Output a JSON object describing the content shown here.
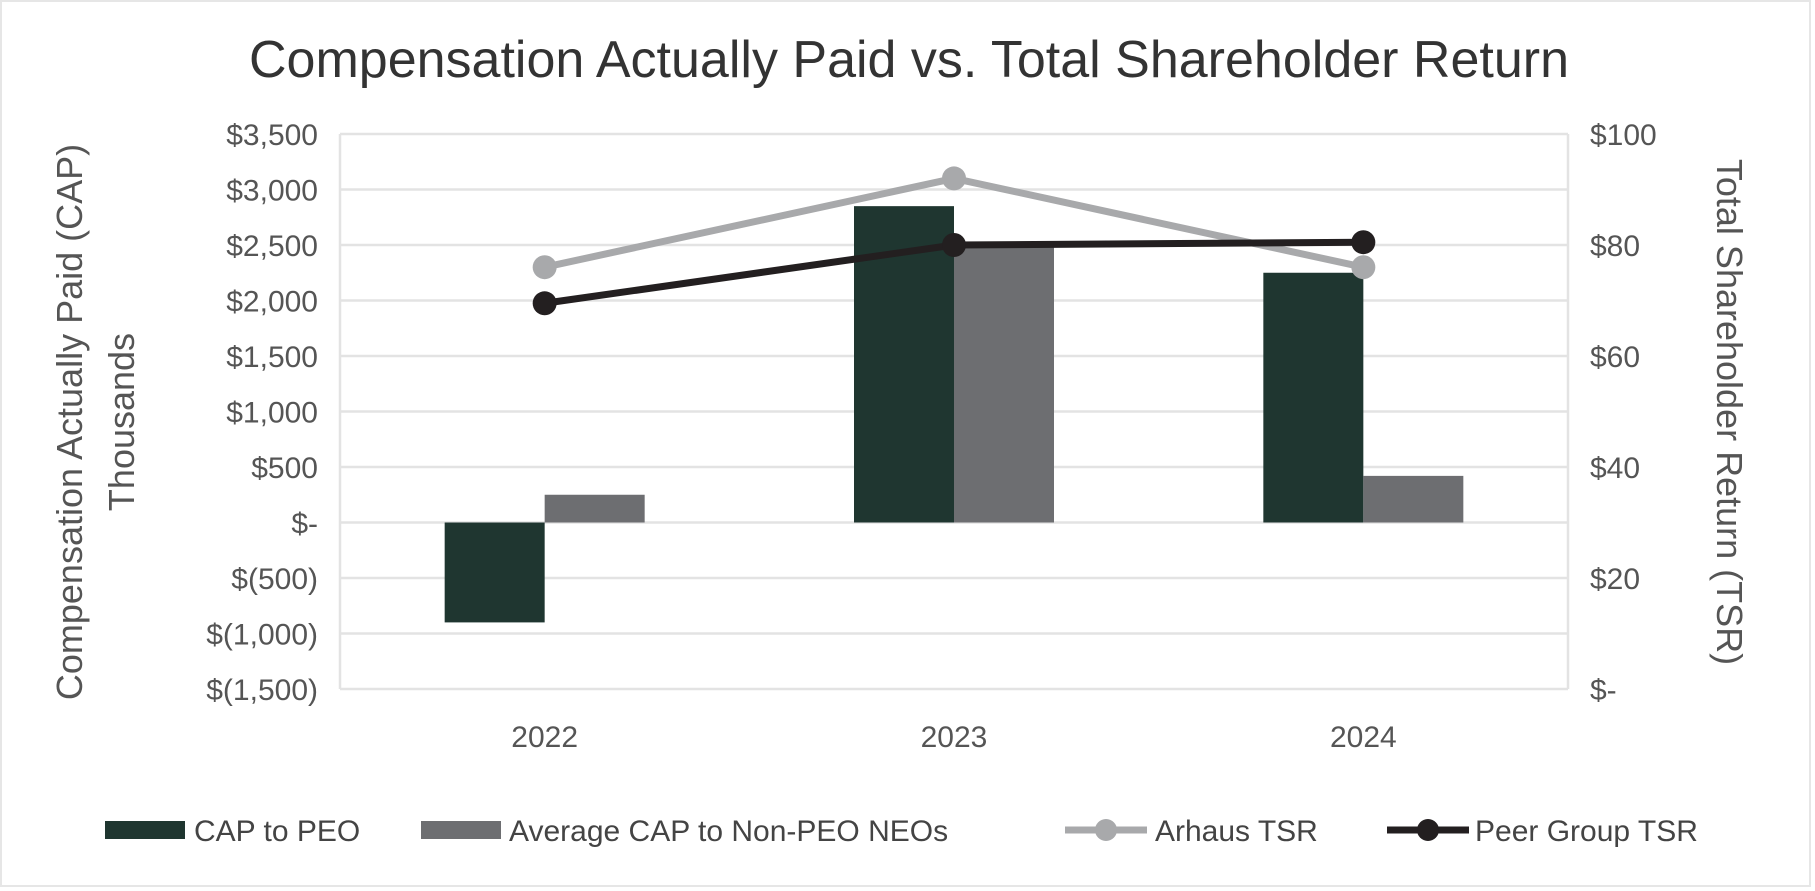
{
  "chart_data": {
    "type": "bar",
    "title": "Compensation Actually Paid vs. Total Shareholder Return",
    "categories": [
      "2022",
      "2023",
      "2024"
    ],
    "ylabel": "Compensation Actually Paid (CAP)",
    "ylabel_line2": "Thousands",
    "y2label": "Total Shareholder Return (TSR)",
    "ylim": [
      -1500,
      3500
    ],
    "y2lim": [
      0,
      100
    ],
    "yticks": [
      3500,
      3000,
      2500,
      2000,
      1500,
      1000,
      500,
      0,
      -500,
      -1000,
      -1500
    ],
    "ytick_labels": [
      "$3,500",
      "$3,000",
      "$2,500",
      "$2,000",
      "$1,500",
      "$1,000",
      "$500",
      "$-",
      "$(500)",
      "$(1,000)",
      "$(1,500)"
    ],
    "y2ticks": [
      100,
      80,
      60,
      40,
      20,
      0
    ],
    "y2tick_labels": [
      "$100",
      "$80",
      "$60",
      "$40",
      "$20",
      "$-"
    ],
    "grid": true,
    "legend_position": "bottom",
    "series": [
      {
        "name": "CAP to PEO",
        "type": "bar",
        "axis": "left",
        "color": "#1f3630",
        "values": [
          -900,
          2850,
          2250
        ]
      },
      {
        "name": "Average CAP to Non-PEO NEOs",
        "type": "bar",
        "axis": "left",
        "color": "#6d6e71",
        "values": [
          250,
          2500,
          420
        ]
      },
      {
        "name": "Arhaus TSR",
        "type": "line",
        "axis": "right",
        "color": "#a8a9ab",
        "values": [
          76,
          92,
          76
        ]
      },
      {
        "name": "Peer Group TSR",
        "type": "line",
        "axis": "right",
        "color": "#231f20",
        "values": [
          69.5,
          80,
          80.5
        ]
      }
    ]
  }
}
